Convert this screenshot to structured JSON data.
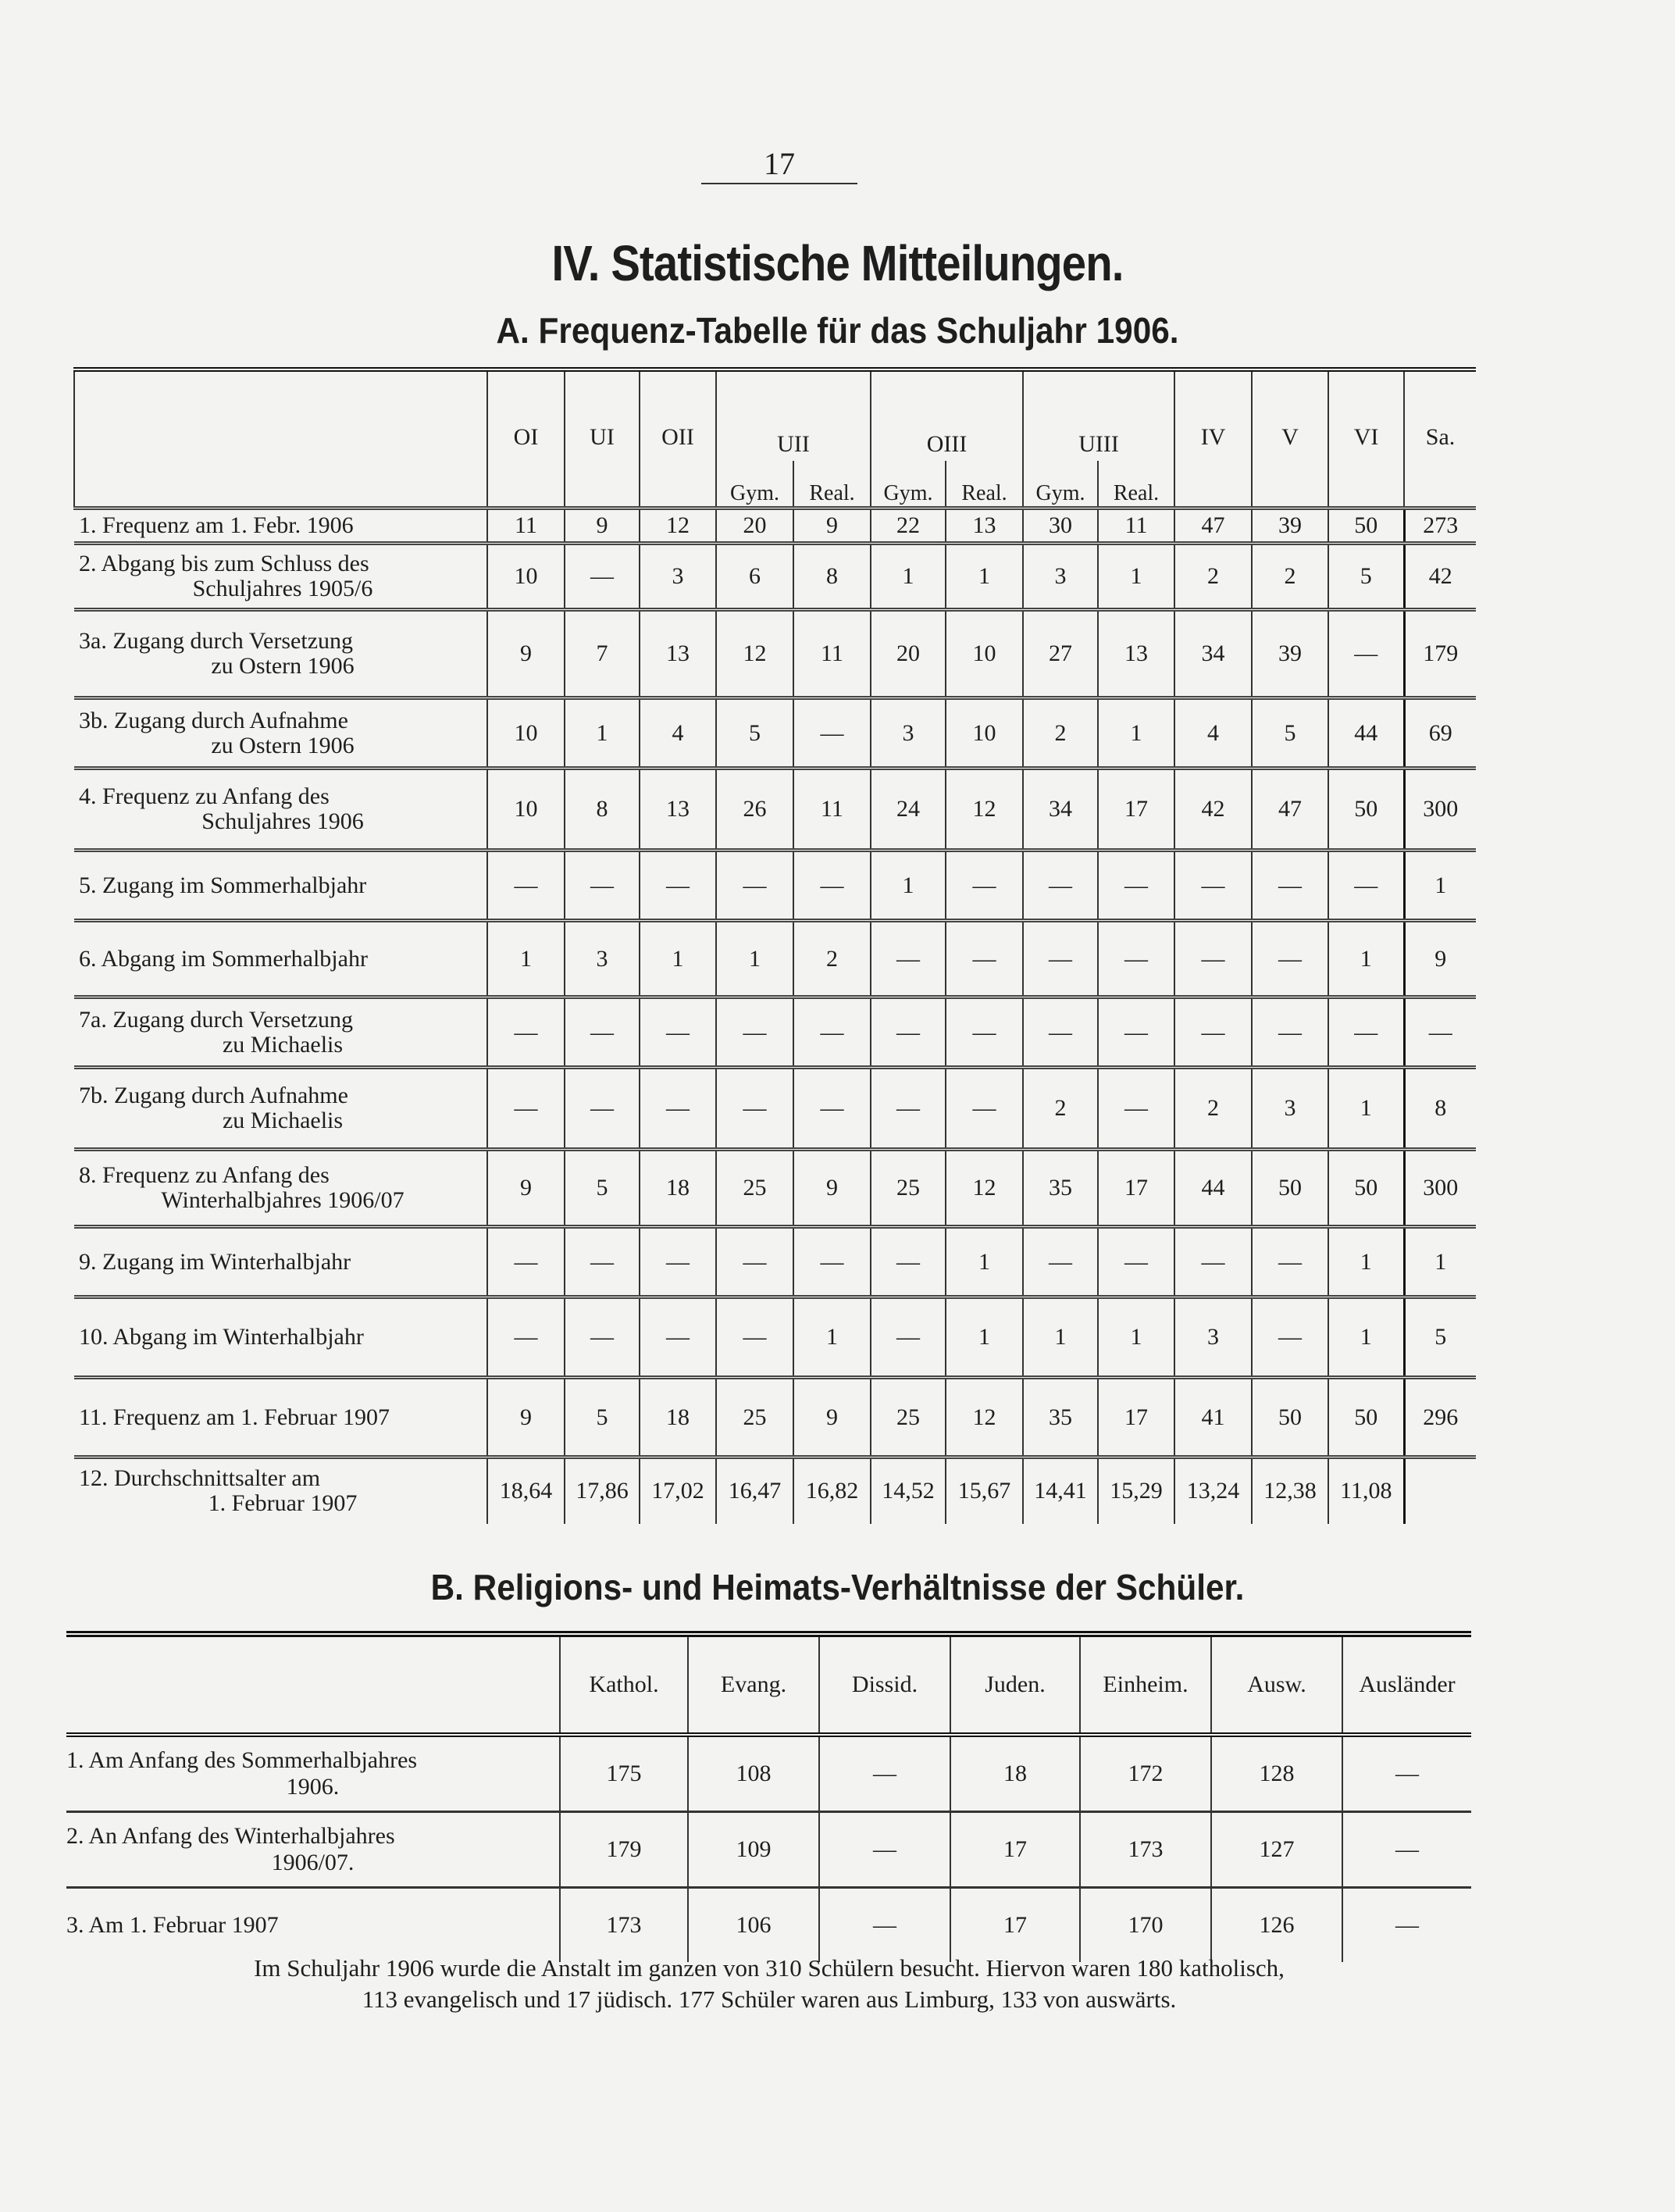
{
  "page_number": "17",
  "title": "IV. Statistische Mitteilungen.",
  "section_a": {
    "heading": "A. Frequenz-Tabelle für das Schuljahr 1906.",
    "columns": [
      {
        "label": "OI",
        "sub": []
      },
      {
        "label": "UI",
        "sub": []
      },
      {
        "label": "OII",
        "sub": []
      },
      {
        "label": "UII",
        "sub": [
          "Gym.",
          "Real."
        ]
      },
      {
        "label": "OIII",
        "sub": [
          "Gym.",
          "Real."
        ]
      },
      {
        "label": "UIII",
        "sub": [
          "Gym.",
          "Real."
        ]
      },
      {
        "label": "IV",
        "sub": []
      },
      {
        "label": "V",
        "sub": []
      },
      {
        "label": "VI",
        "sub": []
      },
      {
        "label": "Sa.",
        "sub": []
      }
    ],
    "rows": [
      {
        "label": [
          "1. Frequenz am 1. Febr. 1906"
        ],
        "values": [
          "11",
          "9",
          "12",
          "20",
          "9",
          "22",
          "13",
          "30",
          "11",
          "47",
          "39",
          "50",
          "273"
        ]
      },
      {
        "label": [
          "2. Abgang bis zum Schluss des",
          "Schuljahres 1905/6"
        ],
        "values": [
          "10",
          "—",
          "3",
          "6",
          "8",
          "1",
          "1",
          "3",
          "1",
          "2",
          "2",
          "5",
          "42"
        ]
      },
      {
        "label": [
          "3a. Zugang durch Versetzung",
          "zu Ostern 1906"
        ],
        "values": [
          "9",
          "7",
          "13",
          "12",
          "11",
          "20",
          "10",
          "27",
          "13",
          "34",
          "39",
          "—",
          "179"
        ]
      },
      {
        "label": [
          "3b. Zugang durch Aufnahme",
          "zu Ostern 1906"
        ],
        "values": [
          "10",
          "1",
          "4",
          "5",
          "—",
          "3",
          "10",
          "2",
          "1",
          "4",
          "5",
          "44",
          "69"
        ]
      },
      {
        "label": [
          "4. Frequenz zu Anfang des",
          "Schuljahres 1906"
        ],
        "values": [
          "10",
          "8",
          "13",
          "26",
          "11",
          "24",
          "12",
          "34",
          "17",
          "42",
          "47",
          "50",
          "300"
        ]
      },
      {
        "label": [
          "5. Zugang im Sommerhalbjahr"
        ],
        "values": [
          "—",
          "—",
          "—",
          "—",
          "—",
          "1",
          "—",
          "—",
          "—",
          "—",
          "—",
          "—",
          "1"
        ]
      },
      {
        "label": [
          "6. Abgang im Sommerhalbjahr"
        ],
        "values": [
          "1",
          "3",
          "1",
          "1",
          "2",
          "—",
          "—",
          "—",
          "—",
          "—",
          "—",
          "1",
          "9"
        ]
      },
      {
        "label": [
          "7a. Zugang durch Versetzung",
          "zu Michaelis"
        ],
        "values": [
          "—",
          "—",
          "—",
          "—",
          "—",
          "—",
          "—",
          "—",
          "—",
          "—",
          "—",
          "—",
          "—"
        ]
      },
      {
        "label": [
          "7b. Zugang durch Aufnahme",
          "zu Michaelis"
        ],
        "values": [
          "—",
          "—",
          "—",
          "—",
          "—",
          "—",
          "—",
          "2",
          "—",
          "2",
          "3",
          "1",
          "8"
        ]
      },
      {
        "label": [
          "8. Frequenz zu Anfang des",
          "Winterhalbjahres 1906/07"
        ],
        "values": [
          "9",
          "5",
          "18",
          "25",
          "9",
          "25",
          "12",
          "35",
          "17",
          "44",
          "50",
          "50",
          "300"
        ]
      },
      {
        "label": [
          "9. Zugang im Winterhalbjahr"
        ],
        "values": [
          "—",
          "—",
          "—",
          "—",
          "—",
          "—",
          "1",
          "—",
          "—",
          "—",
          "—",
          "1",
          "1"
        ]
      },
      {
        "label": [
          "10. Abgang im Winterhalbjahr"
        ],
        "values": [
          "—",
          "—",
          "—",
          "—",
          "1",
          "—",
          "1",
          "1",
          "1",
          "3",
          "—",
          "1",
          "5"
        ]
      },
      {
        "label": [
          "11. Frequenz am 1. Februar 1907"
        ],
        "values": [
          "9",
          "5",
          "18",
          "25",
          "9",
          "25",
          "12",
          "35",
          "17",
          "41",
          "50",
          "50",
          "296"
        ]
      },
      {
        "label": [
          "12. Durchschnittsalter am",
          "1. Februar 1907"
        ],
        "values": [
          "18,64",
          "17,86",
          "17,02",
          "16,47",
          "16,82",
          "14,52",
          "15,67",
          "14,41",
          "15,29",
          "13,24",
          "12,38",
          "11,08",
          ""
        ]
      }
    ]
  },
  "section_b": {
    "heading": "B. Religions- und Heimats-Verhältnisse der Schüler.",
    "columns": [
      "Kathol.",
      "Evang.",
      "Dissid.",
      "Juden.",
      "Einheim.",
      "Ausw.",
      "Ausländer"
    ],
    "rows": [
      {
        "label": [
          "1. Am Anfang des Sommerhalbjahres",
          "1906."
        ],
        "values": [
          "175",
          "108",
          "—",
          "18",
          "172",
          "128",
          "—"
        ]
      },
      {
        "label": [
          "2. An Anfang des Winterhalbjahres",
          "1906/07."
        ],
        "values": [
          "179",
          "109",
          "—",
          "17",
          "173",
          "127",
          "—"
        ]
      },
      {
        "label": [
          "3. Am 1. Februar 1907"
        ],
        "values": [
          "173",
          "106",
          "—",
          "17",
          "170",
          "126",
          "—"
        ]
      }
    ]
  },
  "footer": {
    "line1": "Im Schuljahr 1906 wurde die Anstalt im ganzen von 310 Schülern besucht. Hiervon waren 180 katholisch,",
    "line2": "113 evangelisch und 17 jüdisch. 177 Schüler waren aus Limburg, 133 von auswärts."
  }
}
